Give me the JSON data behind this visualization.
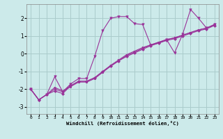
{
  "xlabel": "Windchill (Refroidissement éolien,°C)",
  "bg_color": "#cceaea",
  "grid_color": "#aacccc",
  "line_color": "#993399",
  "xlim": [
    -0.5,
    23.5
  ],
  "ylim": [
    -3.4,
    2.8
  ],
  "yticks": [
    -3,
    -2,
    -1,
    0,
    1,
    2
  ],
  "xticks": [
    0,
    1,
    2,
    3,
    4,
    5,
    6,
    7,
    8,
    9,
    10,
    11,
    12,
    13,
    14,
    15,
    16,
    17,
    18,
    19,
    20,
    21,
    22,
    23
  ],
  "line1_x": [
    0,
    1,
    2,
    3,
    4,
    5,
    6,
    7,
    8,
    9,
    10,
    11,
    12,
    13,
    14,
    15,
    16,
    17,
    18,
    19,
    20,
    21,
    22,
    23
  ],
  "line1_y": [
    -2.0,
    -2.6,
    -2.3,
    -1.3,
    -2.15,
    -1.7,
    -1.4,
    -1.4,
    -0.15,
    1.3,
    2.0,
    2.1,
    2.1,
    1.7,
    1.65,
    0.5,
    0.6,
    0.8,
    0.05,
    1.1,
    2.5,
    2.0,
    1.45,
    1.65
  ],
  "line2_x": [
    0,
    1,
    2,
    3,
    4,
    5,
    6,
    7,
    8,
    9,
    10,
    11,
    12,
    13,
    14,
    15,
    16,
    17,
    18,
    19,
    20,
    21,
    22,
    23
  ],
  "line2_y": [
    -2.0,
    -2.6,
    -2.3,
    -2.1,
    -2.25,
    -1.8,
    -1.55,
    -1.55,
    -1.35,
    -1.0,
    -0.7,
    -0.4,
    -0.15,
    0.05,
    0.25,
    0.45,
    0.6,
    0.75,
    0.85,
    1.0,
    1.15,
    1.3,
    1.4,
    1.6
  ],
  "line3_x": [
    0,
    1,
    2,
    3,
    4,
    5,
    6,
    7,
    8,
    9,
    10,
    11,
    12,
    13,
    14,
    15,
    16,
    17,
    18,
    19,
    20,
    21,
    22,
    23
  ],
  "line3_y": [
    -2.0,
    -2.6,
    -2.3,
    -2.0,
    -2.15,
    -1.85,
    -1.6,
    -1.6,
    -1.4,
    -1.05,
    -0.7,
    -0.4,
    -0.1,
    0.1,
    0.3,
    0.5,
    0.65,
    0.8,
    0.9,
    1.05,
    1.2,
    1.35,
    1.45,
    1.65
  ],
  "line4_x": [
    0,
    1,
    2,
    3,
    4,
    5,
    6,
    7,
    8,
    9,
    10,
    11,
    12,
    13,
    14,
    15,
    16,
    17,
    18,
    19,
    20,
    21,
    22,
    23
  ],
  "line4_y": [
    -2.0,
    -2.6,
    -2.3,
    -1.9,
    -2.1,
    -1.8,
    -1.55,
    -1.55,
    -1.35,
    -1.0,
    -0.65,
    -0.35,
    -0.05,
    0.15,
    0.35,
    0.5,
    0.65,
    0.8,
    0.9,
    1.05,
    1.2,
    1.35,
    1.45,
    1.65
  ]
}
